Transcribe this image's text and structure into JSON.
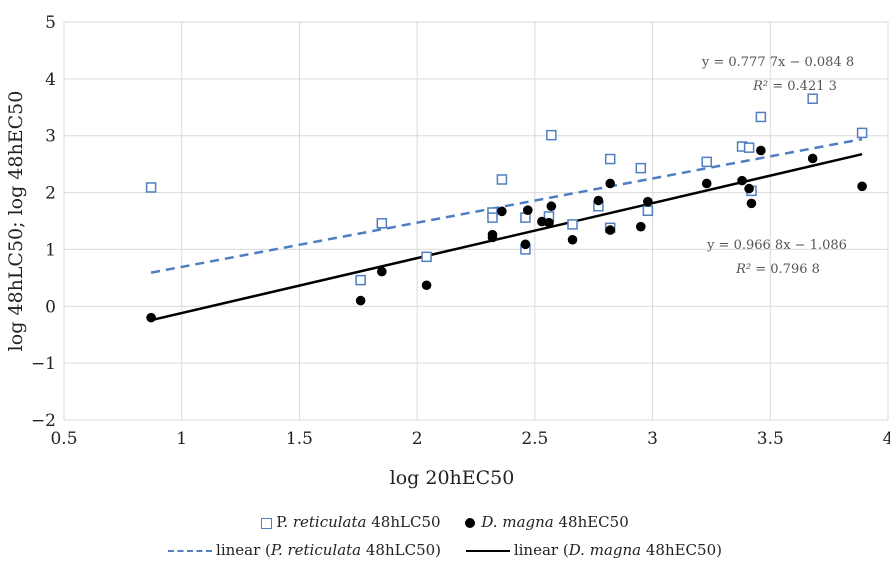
{
  "chart_data": {
    "type": "scatter",
    "xlabel": "log 20hEC50",
    "ylabel": "log 48hLC50; log 48hEC50",
    "xlim": [
      0.5,
      4
    ],
    "ylim": [
      -2,
      5
    ],
    "x_ticks": [
      "0.5",
      "1",
      "1.5",
      "2",
      "2.5",
      "3",
      "3.5",
      "4"
    ],
    "y_ticks": [
      "−2",
      "−1",
      "0",
      "1",
      "2",
      "3",
      "4",
      "5"
    ],
    "grid": true,
    "legend_position": "bottom",
    "series": [
      {
        "name_prefix": "P. ",
        "name_italic": "reticulata",
        "name_suffix": " 48hLC50",
        "marker": "square",
        "color": "#4f7fc1",
        "points": [
          [
            0.87,
            2.09
          ],
          [
            1.76,
            0.46
          ],
          [
            1.85,
            1.46
          ],
          [
            2.04,
            0.87
          ],
          [
            2.32,
            1.65
          ],
          [
            2.32,
            1.56
          ],
          [
            2.36,
            2.23
          ],
          [
            2.46,
            1.0
          ],
          [
            2.46,
            1.56
          ],
          [
            2.56,
            1.58
          ],
          [
            2.57,
            3.01
          ],
          [
            2.66,
            1.44
          ],
          [
            2.77,
            1.76
          ],
          [
            2.82,
            1.38
          ],
          [
            2.82,
            2.59
          ],
          [
            2.95,
            2.43
          ],
          [
            2.98,
            1.68
          ],
          [
            3.23,
            2.54
          ],
          [
            3.38,
            2.81
          ],
          [
            3.41,
            2.79
          ],
          [
            3.42,
            2.03
          ],
          [
            3.46,
            3.33
          ],
          [
            3.68,
            3.65
          ],
          [
            3.89,
            3.05
          ]
        ]
      },
      {
        "name_prefix": "",
        "name_italic": "D. magna",
        "name_suffix": " 48hEC50",
        "marker": "circle",
        "color": "#000000",
        "points": [
          [
            0.87,
            -0.2
          ],
          [
            1.76,
            0.1
          ],
          [
            1.85,
            0.61
          ],
          [
            2.04,
            0.37
          ],
          [
            2.32,
            1.21
          ],
          [
            2.32,
            1.26
          ],
          [
            2.36,
            1.67
          ],
          [
            2.46,
            1.09
          ],
          [
            2.47,
            1.69
          ],
          [
            2.53,
            1.49
          ],
          [
            2.56,
            1.47
          ],
          [
            2.57,
            1.76
          ],
          [
            2.66,
            1.17
          ],
          [
            2.77,
            1.86
          ],
          [
            2.82,
            1.34
          ],
          [
            2.82,
            2.16
          ],
          [
            2.95,
            1.4
          ],
          [
            2.98,
            1.84
          ],
          [
            3.23,
            2.16
          ],
          [
            3.38,
            2.21
          ],
          [
            3.41,
            2.07
          ],
          [
            3.42,
            1.81
          ],
          [
            3.46,
            2.74
          ],
          [
            3.68,
            2.6
          ],
          [
            3.89,
            2.11
          ]
        ]
      }
    ],
    "trendlines": [
      {
        "name_prefix": "linear (",
        "name_italic": "P. reticulata",
        "name_suffix": " 48hLC50)",
        "style": "dashed",
        "color": "#4f7fc1",
        "slope": 0.7777,
        "intercept": -0.0848,
        "x_range": [
          0.87,
          3.89
        ],
        "equation": "y = 0.777 7x − 0.084 8",
        "r2_label": "R²",
        "r2_value": " = 0.421 3"
      },
      {
        "name_prefix": "linear (",
        "name_italic": "D. magna",
        "name_suffix": " 48hEC50)",
        "style": "solid",
        "color": "#000000",
        "slope": 0.9668,
        "intercept": -1.086,
        "x_range": [
          0.87,
          3.89
        ],
        "equation": "y = 0.966 8x − 1.086",
        "r2_label": "R²",
        "r2_value": " = 0.796 8"
      }
    ]
  }
}
